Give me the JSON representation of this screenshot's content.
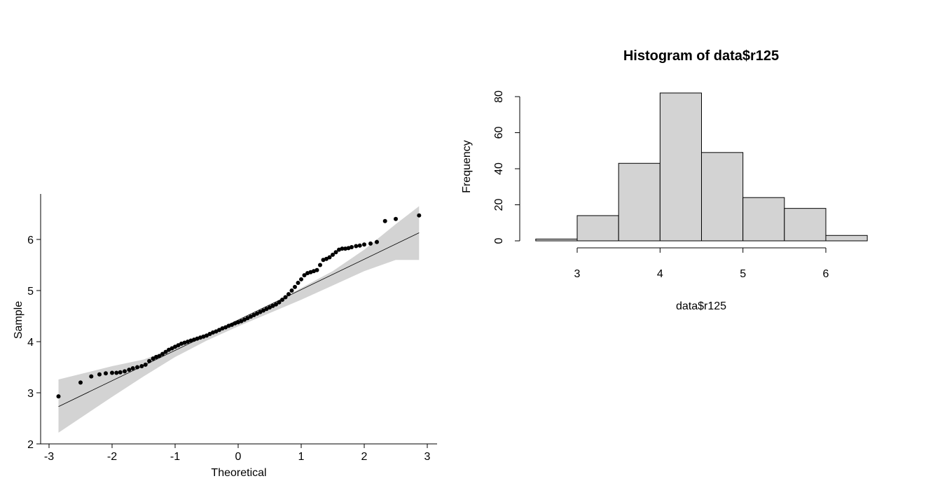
{
  "colors": {
    "band_fill": "#d3d3d3",
    "bar_fill": "#d3d3d3",
    "stroke": "#000000",
    "background": "#ffffff"
  },
  "chart_data": [
    {
      "type": "scatter",
      "title": "",
      "xlabel": "Theoretical",
      "ylabel": "Sample",
      "xlim": [
        -3,
        3
      ],
      "ylim": [
        2,
        6.8
      ],
      "x_ticks": [
        -3,
        -2,
        -1,
        0,
        1,
        2,
        3
      ],
      "x_tick_labels": [
        "-3",
        "-2",
        "-1",
        "0",
        "1",
        "2",
        "3"
      ],
      "y_ticks": [
        2,
        3,
        4,
        5,
        6
      ],
      "y_tick_labels": [
        "2",
        "3",
        "4",
        "5",
        "6"
      ],
      "grid": false,
      "reference_line": {
        "x": [
          -2.85,
          2.87
        ],
        "y": [
          2.73,
          6.13
        ]
      },
      "confidence_band": {
        "x": [
          -2.85,
          -2.0,
          -1.5,
          -1.0,
          -0.5,
          0.0,
          0.5,
          1.0,
          1.5,
          2.0,
          2.5,
          2.87
        ],
        "lower": [
          2.22,
          2.92,
          3.32,
          3.7,
          4.02,
          4.3,
          4.56,
          4.82,
          5.1,
          5.38,
          5.6,
          5.6
        ],
        "upper": [
          3.26,
          3.52,
          3.65,
          3.88,
          4.15,
          4.42,
          4.72,
          5.05,
          5.38,
          5.8,
          6.3,
          6.65
        ]
      },
      "points": {
        "x": [
          -2.85,
          -2.5,
          -2.33,
          -2.2,
          -2.1,
          -2.0,
          -1.93,
          -1.87,
          -1.8,
          -1.73,
          -1.67,
          -1.6,
          -1.53,
          -1.47,
          -1.41,
          -1.35,
          -1.3,
          -1.25,
          -1.2,
          -1.15,
          -1.1,
          -1.05,
          -1.0,
          -0.95,
          -0.9,
          -0.85,
          -0.8,
          -0.75,
          -0.7,
          -0.65,
          -0.6,
          -0.55,
          -0.5,
          -0.45,
          -0.4,
          -0.35,
          -0.3,
          -0.25,
          -0.2,
          -0.15,
          -0.1,
          -0.05,
          0.0,
          0.05,
          0.1,
          0.15,
          0.2,
          0.25,
          0.3,
          0.35,
          0.4,
          0.45,
          0.5,
          0.55,
          0.6,
          0.65,
          0.7,
          0.75,
          0.8,
          0.85,
          0.9,
          0.95,
          1.0,
          1.05,
          1.1,
          1.15,
          1.2,
          1.25,
          1.3,
          1.35,
          1.4,
          1.45,
          1.5,
          1.55,
          1.6,
          1.65,
          1.7,
          1.75,
          1.8,
          1.87,
          1.93,
          2.0,
          2.1,
          2.2,
          2.33,
          2.5,
          2.87
        ],
        "y": [
          2.93,
          3.2,
          3.32,
          3.36,
          3.38,
          3.39,
          3.39,
          3.4,
          3.42,
          3.45,
          3.48,
          3.5,
          3.52,
          3.55,
          3.62,
          3.67,
          3.7,
          3.72,
          3.76,
          3.8,
          3.84,
          3.87,
          3.9,
          3.93,
          3.96,
          3.98,
          4.0,
          4.02,
          4.04,
          4.06,
          4.08,
          4.1,
          4.12,
          4.15,
          4.18,
          4.2,
          4.23,
          4.26,
          4.28,
          4.31,
          4.33,
          4.36,
          4.38,
          4.4,
          4.43,
          4.46,
          4.49,
          4.52,
          4.55,
          4.58,
          4.61,
          4.64,
          4.67,
          4.7,
          4.73,
          4.77,
          4.82,
          4.87,
          4.93,
          5.0,
          5.07,
          5.15,
          5.22,
          5.3,
          5.34,
          5.36,
          5.38,
          5.4,
          5.5,
          5.6,
          5.62,
          5.65,
          5.7,
          5.75,
          5.8,
          5.82,
          5.82,
          5.83,
          5.85,
          5.87,
          5.88,
          5.9,
          5.92,
          5.95,
          6.36,
          6.4,
          6.47
        ]
      }
    },
    {
      "type": "bar",
      "title": "Histogram of data$r125",
      "xlabel": "data$r125",
      "ylabel": "Frequency",
      "bins": [
        {
          "from": 2.5,
          "to": 3.0,
          "count": 1
        },
        {
          "from": 3.0,
          "to": 3.5,
          "count": 14
        },
        {
          "from": 3.5,
          "to": 4.0,
          "count": 43
        },
        {
          "from": 4.0,
          "to": 4.5,
          "count": 82
        },
        {
          "from": 4.5,
          "to": 5.0,
          "count": 49
        },
        {
          "from": 5.0,
          "to": 5.5,
          "count": 24
        },
        {
          "from": 5.5,
          "to": 6.0,
          "count": 18
        },
        {
          "from": 6.0,
          "to": 6.5,
          "count": 3
        }
      ],
      "xlim": [
        2.5,
        6.5
      ],
      "ylim": [
        0,
        82
      ],
      "x_ticks": [
        3,
        4,
        5,
        6
      ],
      "x_tick_labels": [
        "3",
        "4",
        "5",
        "6"
      ],
      "y_ticks": [
        0,
        20,
        40,
        60,
        80
      ],
      "y_tick_labels": [
        "0",
        "20",
        "40",
        "60",
        "80"
      ],
      "grid": false
    }
  ]
}
